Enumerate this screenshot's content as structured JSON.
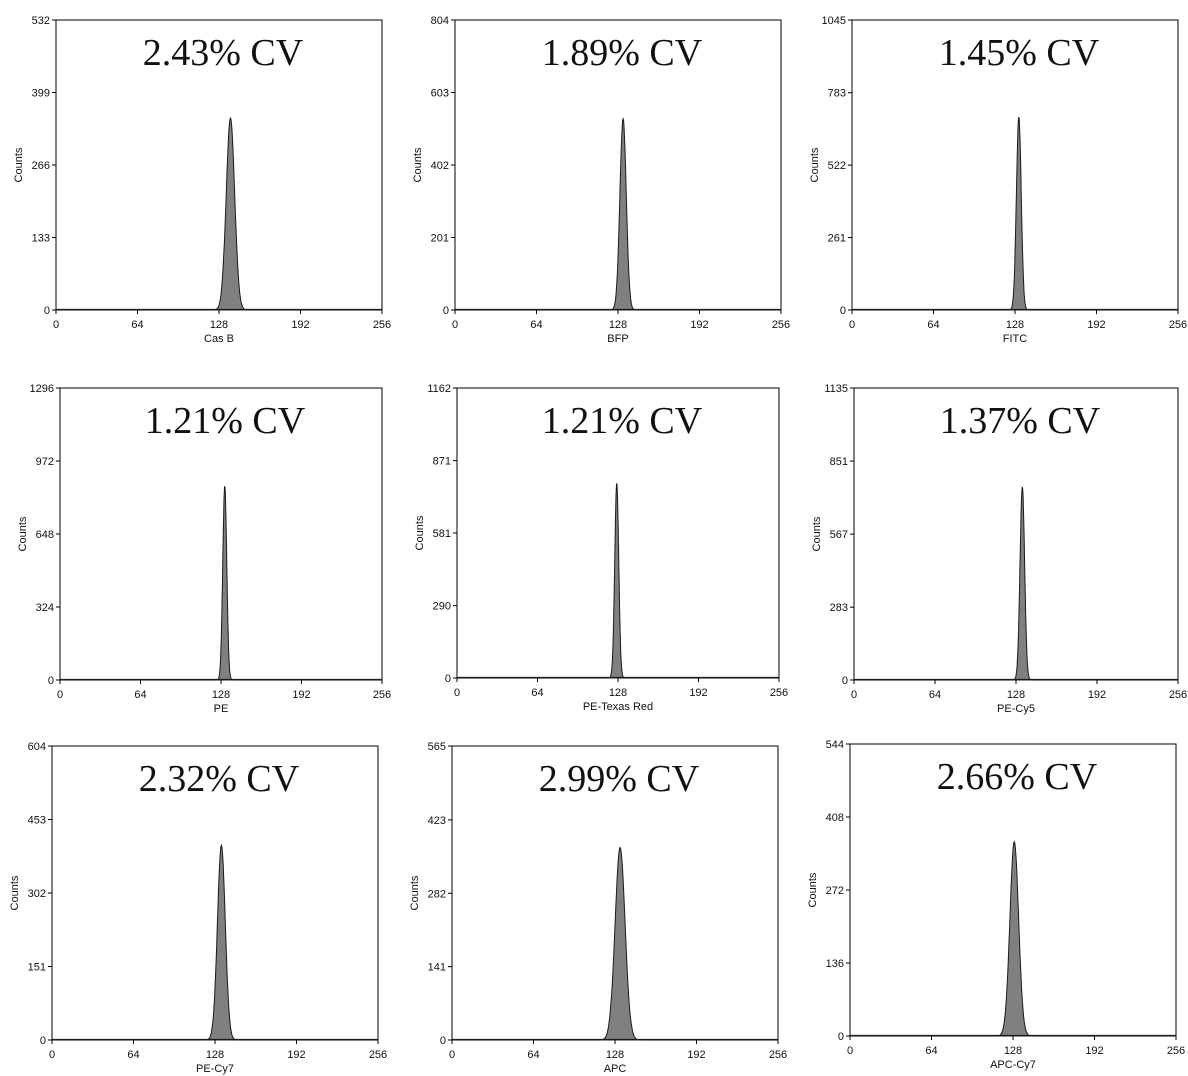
{
  "chart_data": [
    {
      "type": "histogram",
      "xlabel": "Cas B",
      "ylabel": "Counts",
      "annotation": "2.43% CV",
      "xlim": [
        0,
        256
      ],
      "x_ticks": [
        "0",
        "64",
        "128",
        "192",
        "256"
      ],
      "ylim": [
        0,
        532
      ],
      "y_ticks": [
        "0",
        "133",
        "266",
        "399",
        "532"
      ],
      "peak": {
        "center": 137,
        "height": 352,
        "cv_percent": 2.43
      }
    },
    {
      "type": "histogram",
      "xlabel": "BFP",
      "ylabel": "Counts",
      "annotation": "1.89% CV",
      "xlim": [
        0,
        256
      ],
      "x_ticks": [
        "0",
        "64",
        "128",
        "192",
        "256"
      ],
      "ylim": [
        0,
        804
      ],
      "y_ticks": [
        "0",
        "201",
        "402",
        "603",
        "804"
      ],
      "peak": {
        "center": 132,
        "height": 530,
        "cv_percent": 1.89
      }
    },
    {
      "type": "histogram",
      "xlabel": "FITC",
      "ylabel": "Counts",
      "annotation": "1.45% CV",
      "xlim": [
        0,
        256
      ],
      "x_ticks": [
        "0",
        "64",
        "128",
        "192",
        "256"
      ],
      "ylim": [
        0,
        1045
      ],
      "y_ticks": [
        "0",
        "261",
        "522",
        "783",
        "1045"
      ],
      "peak": {
        "center": 131,
        "height": 695,
        "cv_percent": 1.45
      }
    },
    {
      "type": "histogram",
      "xlabel": "PE",
      "ylabel": "Counts",
      "annotation": "1.21% CV",
      "xlim": [
        0,
        256
      ],
      "x_ticks": [
        "0",
        "64",
        "128",
        "192",
        "256"
      ],
      "ylim": [
        0,
        1296
      ],
      "y_ticks": [
        "0",
        "324",
        "648",
        "972",
        "1296"
      ],
      "peak": {
        "center": 131,
        "height": 860,
        "cv_percent": 1.21
      }
    },
    {
      "type": "histogram",
      "xlabel": "PE-Texas Red",
      "ylabel": "Counts",
      "annotation": "1.21% CV",
      "xlim": [
        0,
        256
      ],
      "x_ticks": [
        "0",
        "64",
        "128",
        "192",
        "256"
      ],
      "ylim": [
        0,
        1162
      ],
      "y_ticks": [
        "0",
        "290",
        "581",
        "871",
        "1162"
      ],
      "peak": {
        "center": 127,
        "height": 780,
        "cv_percent": 1.21
      }
    },
    {
      "type": "histogram",
      "xlabel": "PE-Cy5",
      "ylabel": "Counts",
      "annotation": "1.37% CV",
      "xlim": [
        0,
        256
      ],
      "x_ticks": [
        "0",
        "64",
        "128",
        "192",
        "256"
      ],
      "ylim": [
        0,
        1135
      ],
      "y_ticks": [
        "0",
        "283",
        "567",
        "851",
        "1135"
      ],
      "peak": {
        "center": 133,
        "height": 750,
        "cv_percent": 1.37
      }
    },
    {
      "type": "histogram",
      "xlabel": "PE-Cy7",
      "ylabel": "Counts",
      "annotation": "2.32% CV",
      "xlim": [
        0,
        256
      ],
      "x_ticks": [
        "0",
        "64",
        "128",
        "192",
        "256"
      ],
      "ylim": [
        0,
        604
      ],
      "y_ticks": [
        "0",
        "151",
        "302",
        "453",
        "604"
      ],
      "peak": {
        "center": 133,
        "height": 400,
        "cv_percent": 2.32
      }
    },
    {
      "type": "histogram",
      "xlabel": "APC",
      "ylabel": "Counts",
      "annotation": "2.99% CV",
      "xlim": [
        0,
        256
      ],
      "x_ticks": [
        "0",
        "64",
        "128",
        "192",
        "256"
      ],
      "ylim": [
        0,
        565
      ],
      "y_ticks": [
        "0",
        "141",
        "282",
        "423",
        "565"
      ],
      "peak": {
        "center": 132,
        "height": 370,
        "cv_percent": 2.99
      }
    },
    {
      "type": "histogram",
      "xlabel": "APC-Cy7",
      "ylabel": "Counts",
      "annotation": "2.66% CV",
      "xlim": [
        0,
        256
      ],
      "x_ticks": [
        "0",
        "64",
        "128",
        "192",
        "256"
      ],
      "ylim": [
        0,
        544
      ],
      "y_ticks": [
        "0",
        "136",
        "272",
        "408",
        "544"
      ],
      "peak": {
        "center": 129,
        "height": 362,
        "cv_percent": 2.66
      }
    }
  ],
  "colors": {
    "fill": "#808080",
    "stroke": "#1a1a1a",
    "frame": "#000000",
    "background": "#ffffff"
  }
}
